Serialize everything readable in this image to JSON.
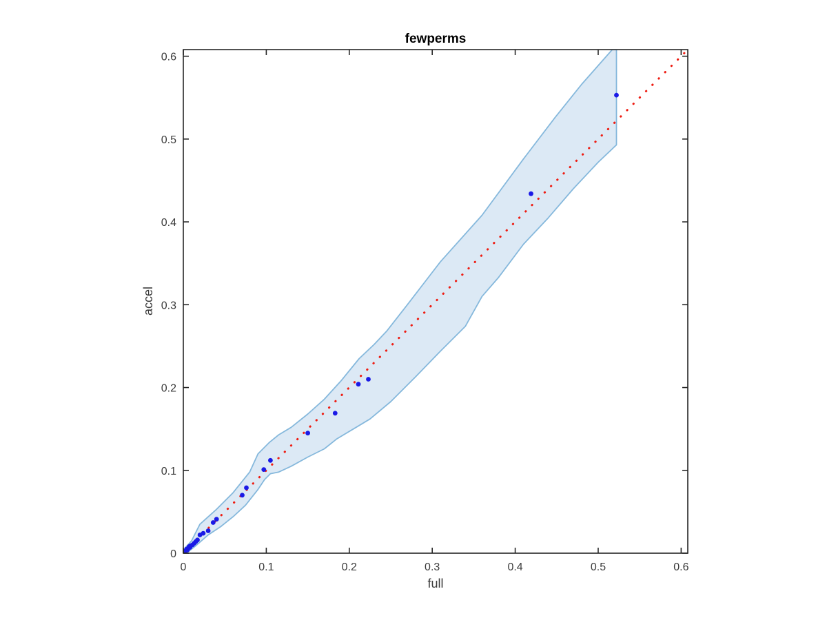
{
  "figure": {
    "background": "#ffffff"
  },
  "chart_data": {
    "type": "scatter",
    "title": "fewperms",
    "xlabel": "full",
    "ylabel": "accel",
    "xlim": [
      0,
      0.608
    ],
    "ylim": [
      0,
      0.608
    ],
    "xticks": [
      0,
      0.1,
      0.2,
      0.3,
      0.4,
      0.5,
      0.6
    ],
    "yticks": [
      0,
      0.1,
      0.2,
      0.3,
      0.4,
      0.5,
      0.6
    ],
    "xtick_labels": [
      "0",
      "0.1",
      "0.2",
      "0.3",
      "0.4",
      "0.5",
      "0.6"
    ],
    "ytick_labels": [
      "0",
      "0.1",
      "0.2",
      "0.3",
      "0.4",
      "0.5",
      "0.6"
    ],
    "grid": false,
    "box": true,
    "tick_direction": "in",
    "axis_color": "#262626",
    "legend": null,
    "series": [
      {
        "name": "confidence-band",
        "kind": "band",
        "fill_color": "#dce9f5",
        "edge_color": "#85b8dc",
        "polygon": [
          [
            0,
            0.004
          ],
          [
            0.01,
            0.015
          ],
          [
            0.02,
            0.035
          ],
          [
            0.04,
            0.053
          ],
          [
            0.06,
            0.073
          ],
          [
            0.08,
            0.098
          ],
          [
            0.09,
            0.12
          ],
          [
            0.104,
            0.134
          ],
          [
            0.115,
            0.143
          ],
          [
            0.13,
            0.152
          ],
          [
            0.15,
            0.168
          ],
          [
            0.17,
            0.186
          ],
          [
            0.19,
            0.208
          ],
          [
            0.212,
            0.235
          ],
          [
            0.23,
            0.252
          ],
          [
            0.245,
            0.268
          ],
          [
            0.27,
            0.3
          ],
          [
            0.31,
            0.352
          ],
          [
            0.36,
            0.408
          ],
          [
            0.41,
            0.476
          ],
          [
            0.448,
            0.526
          ],
          [
            0.48,
            0.566
          ],
          [
            0.517,
            0.608
          ],
          [
            0.522,
            0.608
          ],
          [
            0.522,
            0.493
          ],
          [
            0.5,
            0.472
          ],
          [
            0.47,
            0.44
          ],
          [
            0.44,
            0.405
          ],
          [
            0.41,
            0.373
          ],
          [
            0.38,
            0.333
          ],
          [
            0.36,
            0.31
          ],
          [
            0.34,
            0.274
          ],
          [
            0.31,
            0.244
          ],
          [
            0.28,
            0.213
          ],
          [
            0.25,
            0.183
          ],
          [
            0.225,
            0.162
          ],
          [
            0.205,
            0.15
          ],
          [
            0.185,
            0.138
          ],
          [
            0.17,
            0.126
          ],
          [
            0.15,
            0.116
          ],
          [
            0.13,
            0.105
          ],
          [
            0.115,
            0.098
          ],
          [
            0.105,
            0.096
          ],
          [
            0.098,
            0.089
          ],
          [
            0.09,
            0.077
          ],
          [
            0.075,
            0.058
          ],
          [
            0.06,
            0.044
          ],
          [
            0.045,
            0.032
          ],
          [
            0.03,
            0.022
          ],
          [
            0.015,
            0.009
          ],
          [
            0.005,
            0.001
          ],
          [
            0,
            0
          ]
        ]
      },
      {
        "name": "identity-line",
        "kind": "dotted-line",
        "color": "#ee1c12",
        "x": [
          0,
          0.608
        ],
        "y": [
          0,
          0.608
        ]
      },
      {
        "name": "accel-vs-full",
        "kind": "scatter",
        "color": "#1a1ae6",
        "points": [
          [
            0.001,
            0.002
          ],
          [
            0.002,
            0.001
          ],
          [
            0.003,
            0.003
          ],
          [
            0.004,
            0.005
          ],
          [
            0.005,
            0.004
          ],
          [
            0.006,
            0.006
          ],
          [
            0.007,
            0.008
          ],
          [
            0.008,
            0.007
          ],
          [
            0.009,
            0.009
          ],
          [
            0.011,
            0.01
          ],
          [
            0.013,
            0.012
          ],
          [
            0.015,
            0.014
          ],
          [
            0.017,
            0.016
          ],
          [
            0.02,
            0.022
          ],
          [
            0.024,
            0.024
          ],
          [
            0.03,
            0.027
          ],
          [
            0.036,
            0.037
          ],
          [
            0.04,
            0.041
          ],
          [
            0.071,
            0.07
          ],
          [
            0.076,
            0.079
          ],
          [
            0.097,
            0.101
          ],
          [
            0.105,
            0.112
          ],
          [
            0.15,
            0.145
          ],
          [
            0.183,
            0.169
          ],
          [
            0.211,
            0.204
          ],
          [
            0.223,
            0.21
          ],
          [
            0.419,
            0.434
          ],
          [
            0.522,
            0.553
          ]
        ]
      }
    ]
  }
}
